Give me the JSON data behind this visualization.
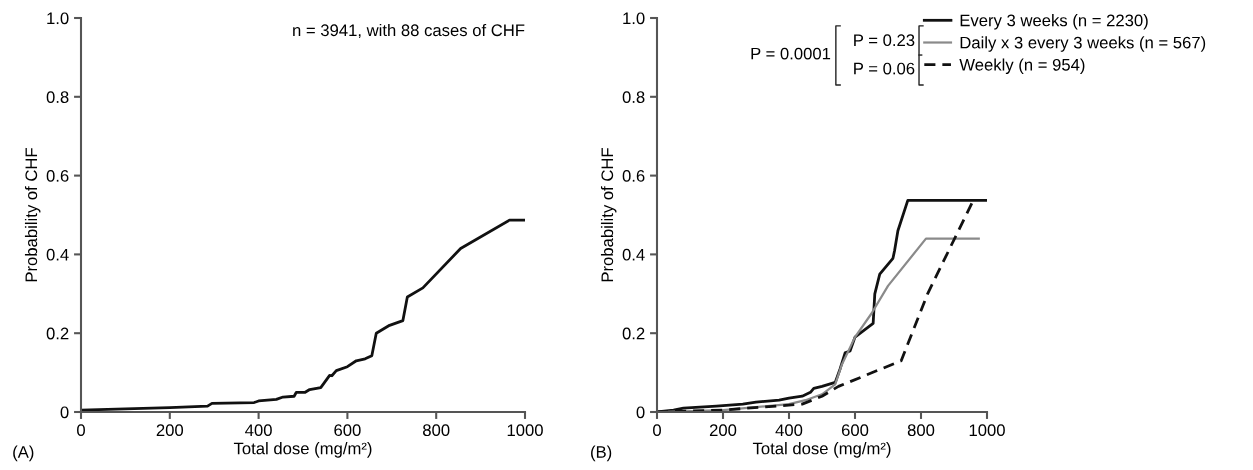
{
  "chart_data": [
    {
      "type": "line",
      "xlabel": "Total dose (mg/m²)",
      "ylabel": "Probability of CHF",
      "annotations": [
        "n = 3941, with 88 cases of CHF",
        "(A)"
      ],
      "xlim": [
        0,
        1000
      ],
      "ylim": [
        0,
        1.0
      ],
      "xticks": [
        0,
        200,
        400,
        600,
        800,
        1000
      ],
      "yticks": [
        0,
        0.2,
        0.4,
        0.6,
        0.8,
        {
          "value": 1,
          "label": "1.0"
        }
      ],
      "grid": false,
      "legend": false,
      "marker": "none",
      "line_style": "solid",
      "series": [
        {
          "color": "#111111",
          "x": [
            0,
            200,
            285,
            295,
            390,
            400,
            440,
            455,
            480,
            485,
            505,
            515,
            540,
            560,
            565,
            575,
            600,
            620,
            640,
            655,
            665,
            695,
            725,
            735,
            770,
            855,
            965,
            1000
          ],
          "values": [
            0.005,
            0.011,
            0.015,
            0.022,
            0.024,
            0.028,
            0.032,
            0.038,
            0.04,
            0.05,
            0.05,
            0.057,
            0.062,
            0.093,
            0.092,
            0.105,
            0.115,
            0.13,
            0.135,
            0.143,
            0.2,
            0.22,
            0.232,
            0.292,
            0.315,
            0.415,
            0.487,
            0.487
          ]
        }
      ]
    },
    {
      "type": "line",
      "xlabel": "Total dose (mg/m²)",
      "ylabel": "Probability of CHF",
      "annotations": [
        "(B)",
        "P = 0.0001",
        "P = 0.23",
        "P = 0.06"
      ],
      "xlim": [
        0,
        1000
      ],
      "ylim": [
        0,
        1.0
      ],
      "xticks": [
        0,
        200,
        400,
        600,
        800,
        1000
      ],
      "yticks": [
        0,
        0.2,
        0.4,
        0.6,
        0.8,
        {
          "value": 1,
          "label": "1.0"
        }
      ],
      "grid": false,
      "legend": "top right",
      "marker": "none",
      "series": [
        {
          "name": "Every 3 weeks (n = 2230)",
          "color": "#111111",
          "line_style": "solid",
          "x": [
            0,
            50,
            80,
            180,
            260,
            300,
            370,
            400,
            440,
            465,
            475,
            500,
            540,
            555,
            570,
            585,
            600,
            655,
            660,
            675,
            715,
            720,
            730,
            760,
            1000
          ],
          "values": [
            0,
            0.005,
            0.01,
            0.015,
            0.02,
            0.025,
            0.03,
            0.035,
            0.04,
            0.05,
            0.06,
            0.065,
            0.075,
            0.11,
            0.15,
            0.155,
            0.19,
            0.225,
            0.3,
            0.35,
            0.39,
            0.41,
            0.46,
            0.537,
            0.537
          ]
        },
        {
          "name": "Daily x 3 every 3 weeks (n = 567)",
          "color": "#8a8a8a",
          "line_style": "solid",
          "x": [
            0,
            200,
            400,
            450,
            500,
            540,
            560,
            600,
            650,
            700,
            815,
            975
          ],
          "values": [
            0,
            0.005,
            0.02,
            0.03,
            0.045,
            0.07,
            0.12,
            0.19,
            0.25,
            0.32,
            0.44,
            0.44
          ]
        },
        {
          "name": "Weekly (n = 954)",
          "color": "#111111",
          "line_style": "dashed",
          "x": [
            0,
            200,
            440,
            500,
            550,
            740,
            820,
            960
          ],
          "values": [
            0,
            0.005,
            0.02,
            0.04,
            0.065,
            0.13,
            0.3,
            0.54
          ]
        }
      ]
    }
  ]
}
